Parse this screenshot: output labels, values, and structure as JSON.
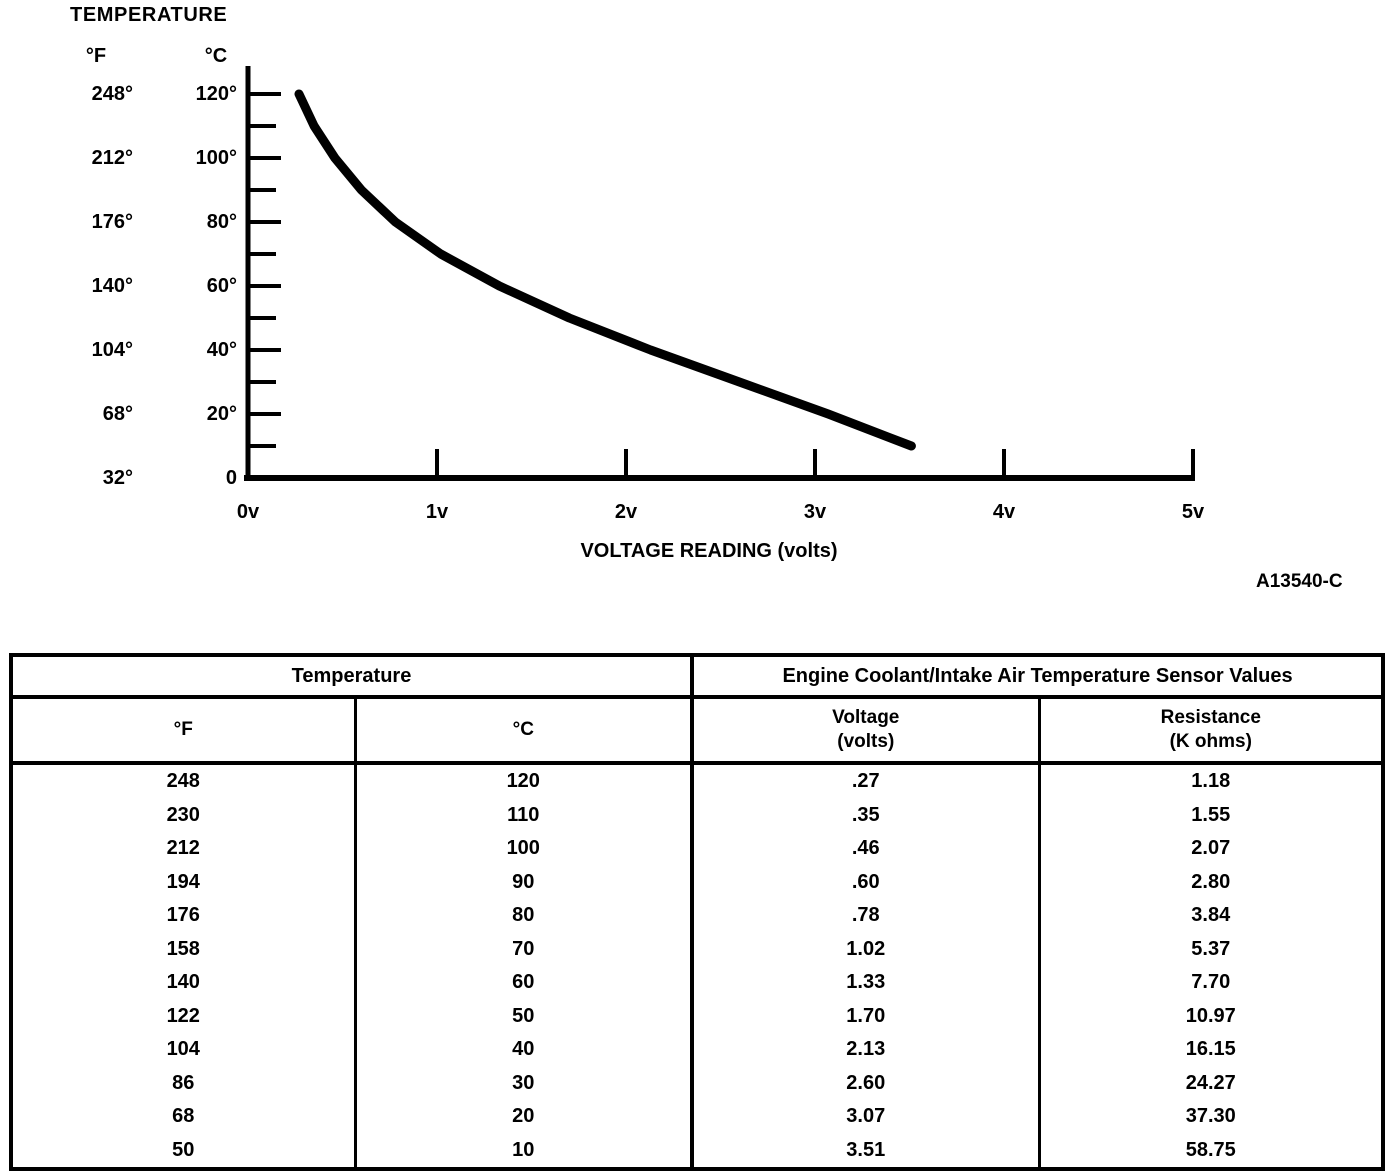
{
  "figure_code": "A13540-C",
  "chart": {
    "title": "TEMPERATURE",
    "y_axis": {
      "f_header": "°F",
      "c_header": "°C",
      "ticks": [
        {
          "f": "248°",
          "c": "120°",
          "celsius": 120
        },
        {
          "f": "212°",
          "c": "100°",
          "celsius": 100
        },
        {
          "f": "176°",
          "c": "80°",
          "celsius": 80
        },
        {
          "f": "140°",
          "c": "60°",
          "celsius": 60
        },
        {
          "f": "104°",
          "c": "40°",
          "celsius": 40
        },
        {
          "f": "68°",
          "c": "20°",
          "celsius": 20
        },
        {
          "f": "32°",
          "c": "0",
          "celsius": 0
        }
      ]
    },
    "x_axis": {
      "label": "VOLTAGE READING (volts)",
      "ticks": [
        {
          "label": "0v",
          "volts": 0
        },
        {
          "label": "1v",
          "volts": 1
        },
        {
          "label": "2v",
          "volts": 2
        },
        {
          "label": "3v",
          "volts": 3
        },
        {
          "label": "4v",
          "volts": 4
        },
        {
          "label": "5v",
          "volts": 5
        }
      ]
    }
  },
  "chart_data": {
    "type": "line",
    "title": "TEMPERATURE",
    "xlabel": "VOLTAGE READING (volts)",
    "ylabel": "TEMPERATURE (°F / °C)",
    "x_volts": [
      0.27,
      0.35,
      0.46,
      0.6,
      0.78,
      1.02,
      1.33,
      1.7,
      2.13,
      2.6,
      3.07,
      3.51
    ],
    "y_celsius": [
      120,
      110,
      100,
      90,
      80,
      70,
      60,
      50,
      40,
      30,
      20,
      10
    ],
    "y_fahrenheit": [
      248,
      230,
      212,
      194,
      176,
      158,
      140,
      122,
      104,
      86,
      68,
      50
    ],
    "xlim": [
      0,
      5
    ],
    "ylim_celsius": [
      0,
      128
    ],
    "x_tick_labels": [
      "0v",
      "1v",
      "2v",
      "3v",
      "4v",
      "5v"
    ],
    "y_tick_labels_c": [
      "120°",
      "100°",
      "80°",
      "60°",
      "40°",
      "20°",
      "0"
    ],
    "y_tick_labels_f": [
      "248°",
      "212°",
      "176°",
      "140°",
      "104°",
      "68°",
      "32°"
    ],
    "grid": false,
    "legend": false
  },
  "table": {
    "group_headers": [
      "Temperature",
      "Engine Coolant/Intake Air Temperature Sensor Values"
    ],
    "columns": [
      {
        "label": "°F",
        "sub": ""
      },
      {
        "label": "°C",
        "sub": ""
      },
      {
        "label": "Voltage",
        "sub": "(volts)"
      },
      {
        "label": "Resistance",
        "sub": "(K ohms)"
      }
    ],
    "rows": [
      [
        "248",
        "120",
        ".27",
        "1.18"
      ],
      [
        "230",
        "110",
        ".35",
        "1.55"
      ],
      [
        "212",
        "100",
        ".46",
        "2.07"
      ],
      [
        "194",
        "90",
        ".60",
        "2.80"
      ],
      [
        "176",
        "80",
        ".78",
        "3.84"
      ],
      [
        "158",
        "70",
        "1.02",
        "5.37"
      ],
      [
        "140",
        "60",
        "1.33",
        "7.70"
      ],
      [
        "122",
        "50",
        "1.70",
        "10.97"
      ],
      [
        "104",
        "40",
        "2.13",
        "16.15"
      ],
      [
        "86",
        "30",
        "2.60",
        "24.27"
      ],
      [
        "68",
        "20",
        "3.07",
        "37.30"
      ],
      [
        "50",
        "10",
        "3.51",
        "58.75"
      ]
    ]
  }
}
